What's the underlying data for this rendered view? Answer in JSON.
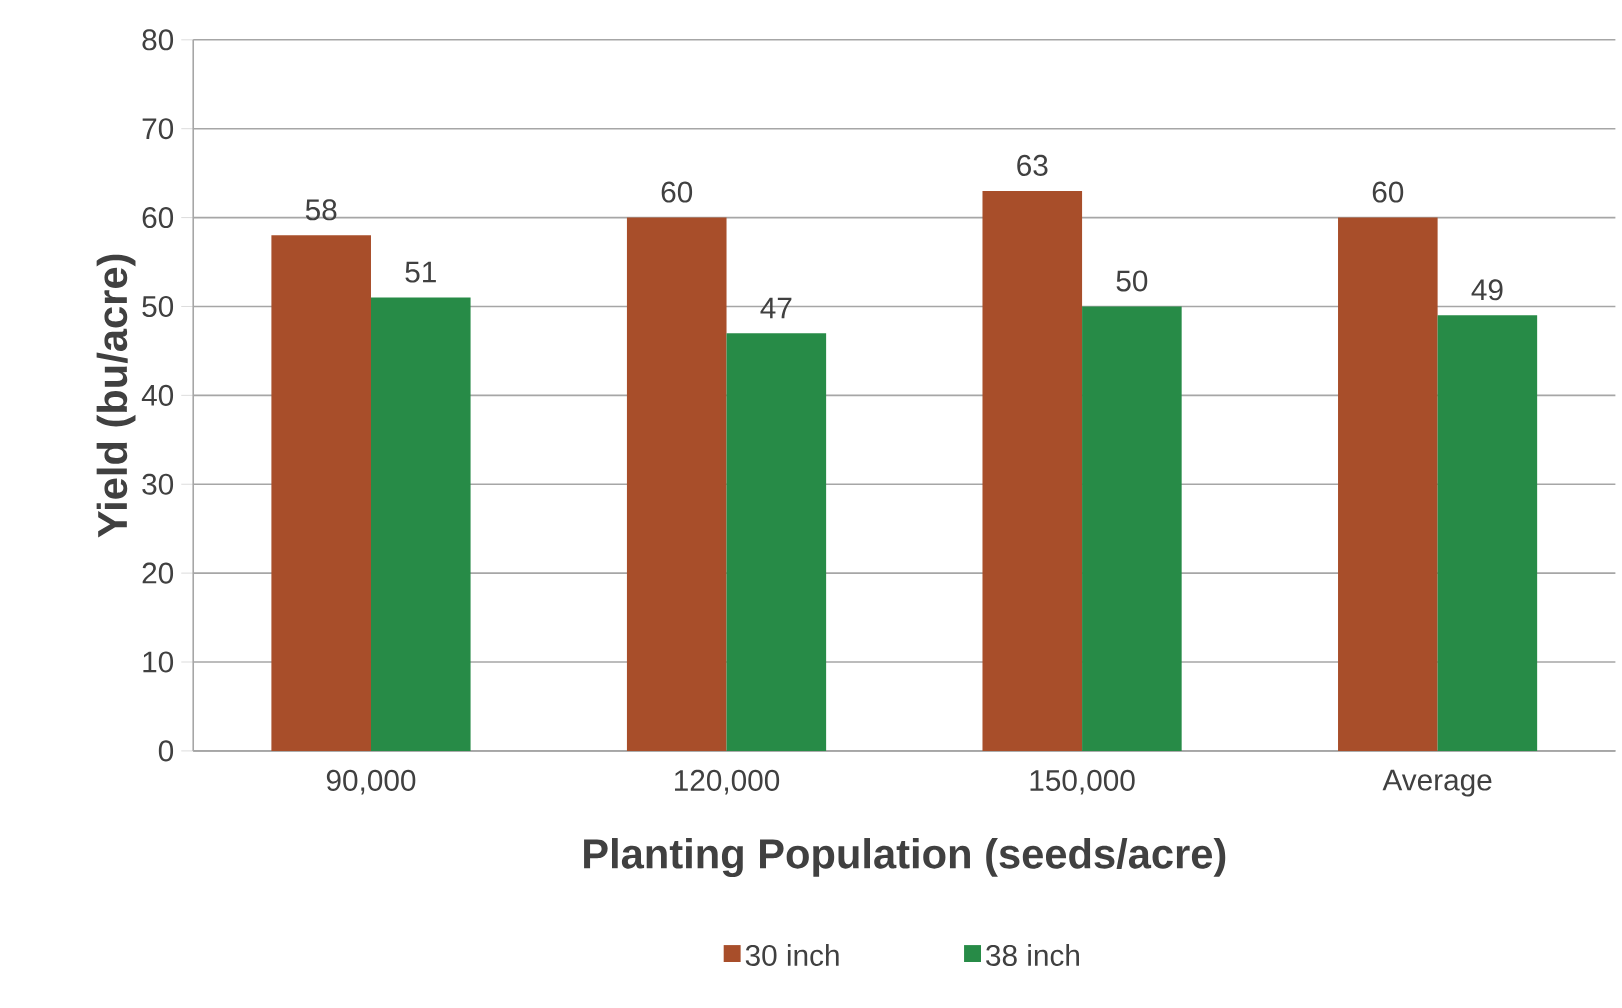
{
  "chart_data": {
    "type": "bar",
    "xlabel": "Planting Population (seeds/acre)",
    "ylabel": "Yield (bu/acre)",
    "categories": [
      "90,000",
      "120,000",
      "150,000",
      "Average"
    ],
    "series": [
      {
        "name": "30 inch",
        "color": "#a84e2a",
        "values": [
          58,
          60,
          63,
          60
        ]
      },
      {
        "name": "38 inch",
        "color": "#278b47",
        "values": [
          51,
          47,
          50,
          49
        ]
      }
    ],
    "ylim": [
      0,
      80
    ],
    "yticks": [
      0,
      10,
      20,
      30,
      40,
      50,
      60,
      70,
      80
    ],
    "grid": "y",
    "legend": "bottom",
    "data_labels": true
  }
}
